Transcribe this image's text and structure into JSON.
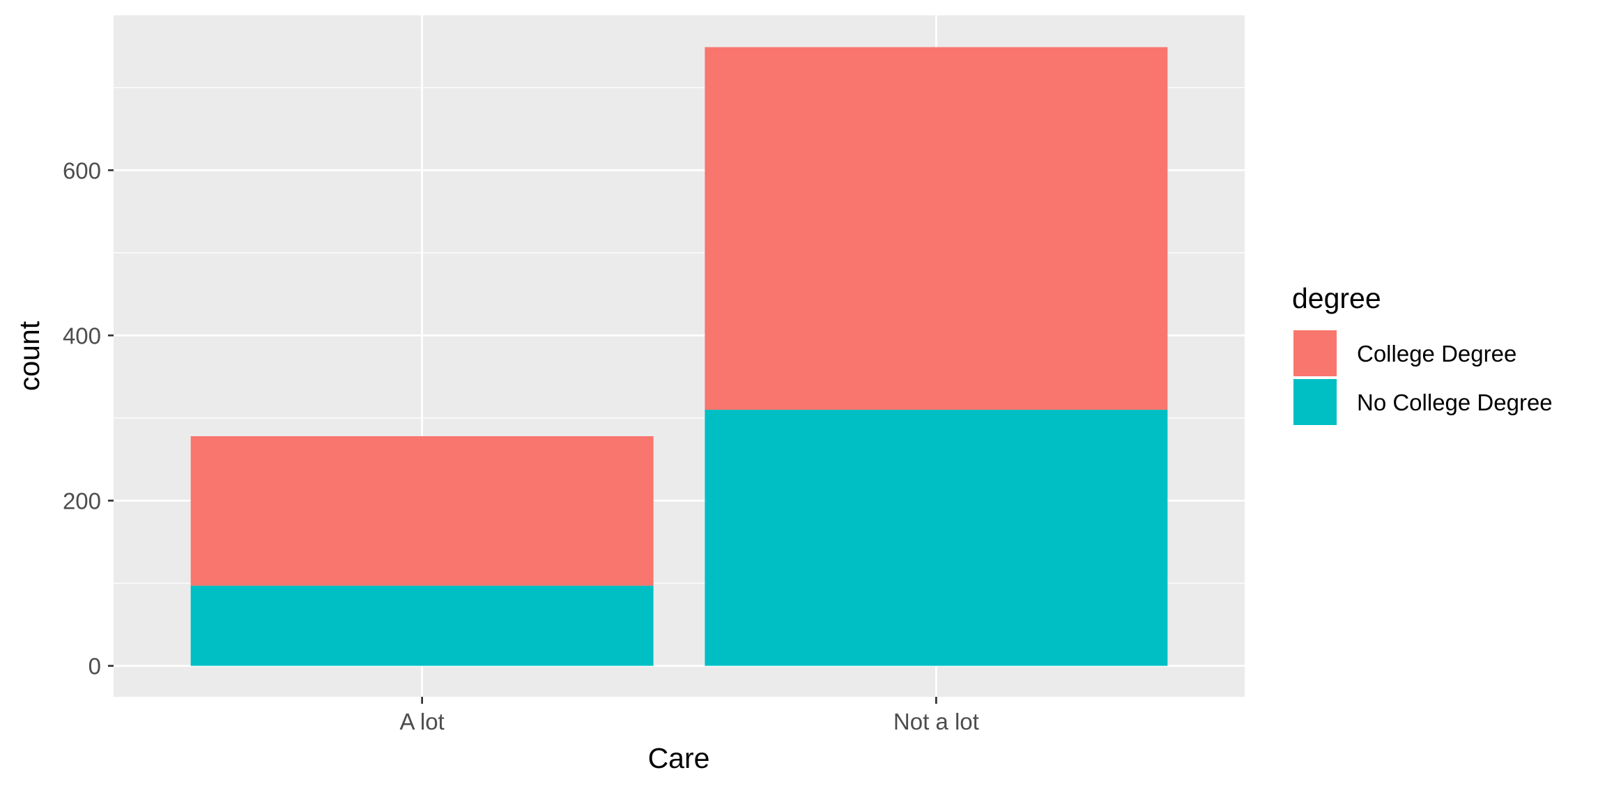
{
  "chart_data": {
    "type": "bar",
    "stacked": true,
    "categories": [
      "A lot",
      "Not a lot"
    ],
    "series": [
      {
        "name": "College Degree",
        "values": [
          181,
          439
        ],
        "color": "#F8766D"
      },
      {
        "name": "No College Degree",
        "values": [
          97,
          310
        ],
        "color": "#00BFC4"
      }
    ],
    "xlabel": "Care",
    "ylabel": "count",
    "ylim": [
      -37.5,
      787.5
    ],
    "yticks": [
      0,
      200,
      400,
      600
    ],
    "grid": true,
    "panel_background": "#EBEBEB",
    "legend": {
      "title": "degree",
      "placement": "right"
    }
  }
}
